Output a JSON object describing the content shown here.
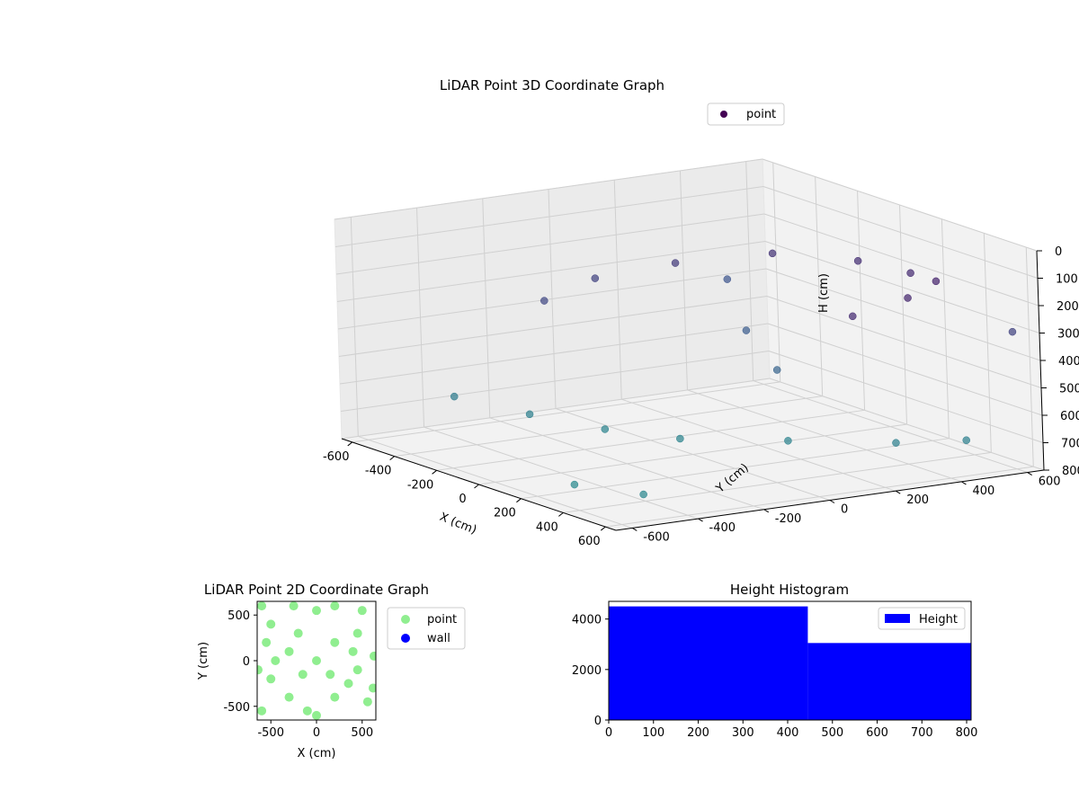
{
  "chart_data": [
    {
      "type": "scatter",
      "projection": "3d",
      "title": "LiDAR Point 3D Coordinate Graph",
      "xlabel": "X (cm)",
      "ylabel": "Y (cm)",
      "zlabel": "H (cm)",
      "xlim": [
        -650,
        650
      ],
      "ylim": [
        -650,
        650
      ],
      "zlim": [
        800,
        0
      ],
      "x_ticks": [
        -600,
        -400,
        -200,
        0,
        200,
        400,
        600
      ],
      "y_ticks": [
        -600,
        -400,
        -200,
        0,
        200,
        400,
        600
      ],
      "z_ticks": [
        0,
        100,
        200,
        300,
        400,
        500,
        600,
        700,
        800
      ],
      "z_axis_inverted": true,
      "grid": true,
      "legend": {
        "position": "top-right",
        "entries": [
          {
            "name": "point",
            "color": "#440154"
          }
        ]
      },
      "colormap": "viridis",
      "series": [
        {
          "name": "point",
          "description_of_structure": "dense purple arc near H≈100-300 around the back, dense bluish band near H≈600-750 across the front, scattered outliers",
          "points": [
            {
              "x": 400,
              "y": 500,
              "h": 150
            },
            {
              "x": 200,
              "y": 550,
              "h": 180
            },
            {
              "x": -50,
              "y": 550,
              "h": 200
            },
            {
              "x": -300,
              "y": 450,
              "h": 220
            },
            {
              "x": -450,
              "y": 250,
              "h": 260
            },
            {
              "x": -520,
              "y": 50,
              "h": 300
            },
            {
              "x": -450,
              "y": -150,
              "h": 330
            },
            {
              "x": 500,
              "y": 350,
              "h": 160
            },
            {
              "x": 550,
              "y": 150,
              "h": 180
            },
            {
              "x": -300,
              "y": -300,
              "h": 680
            },
            {
              "x": -100,
              "y": -200,
              "h": 700
            },
            {
              "x": 100,
              "y": -100,
              "h": 700
            },
            {
              "x": 300,
              "y": 100,
              "h": 690
            },
            {
              "x": 500,
              "y": 300,
              "h": 680
            },
            {
              "x": 600,
              "y": 450,
              "h": 670
            },
            {
              "x": -500,
              "y": -400,
              "h": 650
            },
            {
              "x": 550,
              "y": -500,
              "h": 720
            },
            {
              "x": 300,
              "y": -550,
              "h": 740
            },
            {
              "x": -600,
              "y": 500,
              "h": 400
            },
            {
              "x": 600,
              "y": 600,
              "h": 300
            },
            {
              "x": -200,
              "y": 300,
              "h": 450
            },
            {
              "x": 100,
              "y": 200,
              "h": 500
            }
          ]
        }
      ]
    },
    {
      "type": "scatter",
      "title": "LiDAR Point 2D Coordinate Graph",
      "xlabel": "X (cm)",
      "ylabel": "Y (cm)",
      "xlim": [
        -650,
        650
      ],
      "ylim": [
        -650,
        650
      ],
      "x_ticks": [
        -500,
        0,
        500
      ],
      "y_ticks": [
        -500,
        0,
        500
      ],
      "legend": {
        "position": "outside-right",
        "entries": [
          {
            "name": "point",
            "color": "#90ee90"
          },
          {
            "name": "wall",
            "color": "#0000ff"
          }
        ]
      },
      "series": [
        {
          "name": "point",
          "color": "#90ee90",
          "points": [
            {
              "x": -600,
              "y": 600
            },
            {
              "x": -500,
              "y": 400
            },
            {
              "x": -550,
              "y": 200
            },
            {
              "x": -450,
              "y": 0
            },
            {
              "x": -500,
              "y": -200
            },
            {
              "x": -600,
              "y": -550
            },
            {
              "x": -300,
              "y": -400
            },
            {
              "x": -100,
              "y": -550
            },
            {
              "x": 0,
              "y": -600
            },
            {
              "x": 200,
              "y": -400
            },
            {
              "x": 350,
              "y": -250
            },
            {
              "x": 450,
              "y": -100
            },
            {
              "x": 400,
              "y": 100
            },
            {
              "x": 450,
              "y": 300
            },
            {
              "x": 500,
              "y": 550
            },
            {
              "x": 200,
              "y": 600
            },
            {
              "x": 0,
              "y": 550
            },
            {
              "x": -250,
              "y": 600
            },
            {
              "x": -200,
              "y": 300
            },
            {
              "x": 0,
              "y": 0
            },
            {
              "x": 200,
              "y": 200
            },
            {
              "x": 150,
              "y": -150
            },
            {
              "x": -150,
              "y": -150
            },
            {
              "x": -300,
              "y": 100
            },
            {
              "x": 630,
              "y": 50
            },
            {
              "x": 620,
              "y": -300
            },
            {
              "x": 560,
              "y": -450
            },
            {
              "x": -640,
              "y": -100
            }
          ]
        },
        {
          "name": "wall",
          "color": "#0000ff",
          "points": []
        }
      ]
    },
    {
      "type": "bar",
      "subtype": "histogram",
      "title": "Height Histogram",
      "xlabel": "",
      "ylabel": "",
      "xlim": [
        0,
        810
      ],
      "ylim": [
        0,
        4700
      ],
      "x_ticks": [
        0,
        100,
        200,
        300,
        400,
        500,
        600,
        700,
        800
      ],
      "y_ticks": [
        0,
        2000,
        4000
      ],
      "legend": {
        "position": "top-right",
        "entries": [
          {
            "name": "Height",
            "color": "#0000ff"
          }
        ]
      },
      "series": [
        {
          "name": "Height",
          "color": "#0000ff",
          "bins": [
            {
              "start": 0,
              "end": 445,
              "count": 4500
            },
            {
              "start": 445,
              "end": 810,
              "count": 3050
            }
          ]
        }
      ]
    }
  ]
}
